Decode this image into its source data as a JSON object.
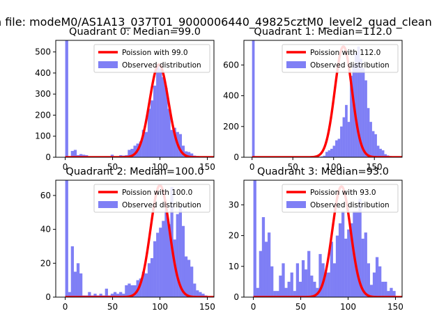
{
  "figure": {
    "suptitle": "n file: modeM0/AS1A13_037T01_9000006440_49825cztM0_level2_quad_clean"
  },
  "chart_data": [
    {
      "type": "bar",
      "title": "Quadrant 0: Median=99.0",
      "xlim": [
        -10,
        157
      ],
      "ylim": [
        0,
        555
      ],
      "xticks": [
        0,
        50,
        100,
        150
      ],
      "yticks": [
        0,
        100,
        200,
        300,
        400,
        500
      ],
      "bin_width": 3,
      "bin_starts": [
        0,
        3,
        6,
        9,
        12,
        15,
        18,
        21,
        24,
        27,
        30,
        33,
        36,
        39,
        42,
        45,
        48,
        51,
        54,
        57,
        60,
        63,
        66,
        69,
        72,
        75,
        78,
        81,
        84,
        87,
        90,
        93,
        96,
        99,
        102,
        105,
        108,
        111,
        114,
        117,
        120,
        123,
        126,
        129,
        132,
        135,
        138,
        141,
        144,
        147
      ],
      "histogram_counts": [
        555,
        3,
        30,
        35,
        10,
        15,
        12,
        10,
        3,
        2,
        3,
        3,
        3,
        4,
        5,
        5,
        12,
        3,
        5,
        10,
        8,
        10,
        35,
        40,
        55,
        65,
        75,
        130,
        120,
        230,
        270,
        340,
        440,
        420,
        380,
        330,
        230,
        130,
        140,
        120,
        110,
        55,
        28,
        25,
        18,
        8,
        6,
        4,
        3,
        2
      ],
      "poisson_mean": 99.0,
      "poisson_peak": 440,
      "legend": {
        "position": "top-right",
        "line_label": "Poission with 99.0",
        "bar_label": "Observed distribution"
      },
      "colors": {
        "bar": "#7f7ff5",
        "line": "#ff0000"
      }
    },
    {
      "type": "bar",
      "title": "Quadrant 1: Median=112.0",
      "xlim": [
        -10,
        184
      ],
      "ylim": [
        0,
        760
      ],
      "xticks": [
        0,
        50,
        100,
        150
      ],
      "yticks": [
        0,
        200,
        400,
        600
      ],
      "bin_width": 3,
      "bin_starts": [
        0,
        3,
        6,
        9,
        12,
        15,
        18,
        21,
        24,
        27,
        30,
        33,
        36,
        39,
        42,
        45,
        48,
        51,
        54,
        57,
        60,
        63,
        66,
        69,
        72,
        75,
        78,
        81,
        84,
        87,
        90,
        93,
        96,
        99,
        102,
        105,
        108,
        111,
        114,
        117,
        120,
        123,
        126,
        129,
        132,
        135,
        138,
        141,
        144,
        147,
        150,
        153,
        156,
        159,
        162,
        165,
        168,
        171,
        174,
        177,
        180
      ],
      "histogram_counts": [
        760,
        2,
        1,
        1,
        1,
        1,
        1,
        1,
        1,
        1,
        1,
        1,
        1,
        1,
        1,
        1,
        1,
        1,
        1,
        1,
        1,
        1,
        1,
        1,
        1,
        1,
        2,
        3,
        5,
        10,
        35,
        45,
        55,
        75,
        110,
        120,
        200,
        260,
        340,
        230,
        530,
        600,
        680,
        720,
        640,
        580,
        500,
        320,
        230,
        170,
        150,
        75,
        55,
        45,
        20,
        12,
        8,
        5,
        3,
        3,
        2
      ],
      "poisson_mean": 112.0,
      "poisson_peak": 720,
      "legend": {
        "position": "top-right",
        "line_label": "Poission with 112.0",
        "bar_label": "Observed distribution"
      },
      "colors": {
        "bar": "#7f7ff5",
        "line": "#ff0000"
      }
    },
    {
      "type": "bar",
      "title": "Quadrant 2: Median=100.0",
      "xlim": [
        -10,
        157
      ],
      "ylim": [
        0,
        69
      ],
      "xticks": [
        0,
        50,
        100,
        150
      ],
      "yticks": [
        0,
        20,
        40,
        60
      ],
      "bin_width": 3,
      "bin_starts": [
        0,
        3,
        6,
        9,
        12,
        15,
        18,
        21,
        24,
        27,
        30,
        33,
        36,
        39,
        42,
        45,
        48,
        51,
        54,
        57,
        60,
        63,
        66,
        69,
        72,
        75,
        78,
        81,
        84,
        87,
        90,
        93,
        96,
        99,
        102,
        105,
        108,
        111,
        114,
        117,
        120,
        123,
        126,
        129,
        132,
        135,
        138,
        141,
        144,
        147
      ],
      "histogram_counts": [
        69,
        3,
        30,
        15,
        20,
        14,
        1,
        1,
        3,
        1,
        2,
        1,
        2,
        1,
        5,
        1,
        2,
        3,
        2,
        3,
        2,
        7,
        8,
        7,
        7,
        10,
        11,
        15,
        14,
        20,
        23,
        33,
        38,
        41,
        45,
        52,
        43,
        65,
        34,
        49,
        54,
        42,
        24,
        22,
        18,
        8,
        4,
        3,
        2,
        1
      ],
      "poisson_mean": 100.0,
      "poisson_peak": 66,
      "legend": {
        "position": "top-right",
        "line_label": "Poission with 100.0",
        "bar_label": "Observed distribution"
      },
      "colors": {
        "bar": "#7f7ff5",
        "line": "#ff0000"
      }
    },
    {
      "type": "bar",
      "title": "Quadrant 3: Median=93.0",
      "xlim": [
        -10,
        157
      ],
      "ylim": [
        0,
        38
      ],
      "xticks": [
        0,
        50,
        100,
        150
      ],
      "yticks": [
        0,
        10,
        20,
        30
      ],
      "bin_width": 3,
      "bin_starts": [
        0,
        3,
        6,
        9,
        12,
        15,
        18,
        21,
        24,
        27,
        30,
        33,
        36,
        39,
        42,
        45,
        48,
        51,
        54,
        57,
        60,
        63,
        66,
        69,
        72,
        75,
        78,
        81,
        84,
        87,
        90,
        93,
        96,
        99,
        102,
        105,
        108,
        111,
        114,
        117,
        120,
        123,
        126,
        129,
        132,
        135,
        138,
        141,
        144,
        147
      ],
      "histogram_counts": [
        38,
        3,
        15,
        26,
        18,
        21,
        10,
        2,
        2,
        7,
        11,
        3,
        5,
        8,
        2,
        11,
        5,
        12,
        9,
        15,
        7,
        5,
        3,
        14,
        11,
        8,
        8,
        18,
        11,
        20,
        24,
        28,
        19,
        22,
        24,
        28,
        28,
        32,
        19,
        21,
        11,
        4,
        8,
        13,
        10,
        5,
        5,
        2,
        3,
        2
      ],
      "poisson_mean": 93.0,
      "poisson_peak": 36,
      "legend": {
        "position": "top-right",
        "line_label": "Poission with 93.0",
        "bar_label": "Observed distribution"
      },
      "colors": {
        "bar": "#7f7ff5",
        "line": "#ff0000"
      }
    }
  ]
}
